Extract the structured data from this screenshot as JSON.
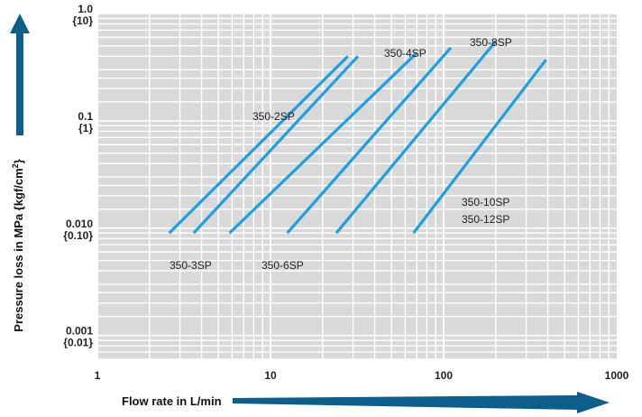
{
  "chart_data": {
    "type": "line",
    "xlabel": "Flow rate in L/min",
    "ylabel_main": "Pressure loss in MPa {kgf/cm",
    "ylabel_sup": "2",
    "ylabel_end": "}",
    "x_scale": "log",
    "y_scale": "log",
    "xlim": [
      1,
      1000
    ],
    "ylim": [
      0.0006,
      1.0
    ],
    "grid": true,
    "x_ticks": [
      {
        "value": 1,
        "label": "1"
      },
      {
        "value": 10,
        "label": "10"
      },
      {
        "value": 100,
        "label": "100"
      },
      {
        "value": 1000,
        "label": "1000"
      }
    ],
    "y_ticks": [
      {
        "value": 1.0,
        "label": "1.0",
        "sublabel": "{10}"
      },
      {
        "value": 0.1,
        "label": "0.1",
        "sublabel": "{1}"
      },
      {
        "value": 0.01,
        "label": "0.010",
        "sublabel": "{0.10}"
      },
      {
        "value": 0.001,
        "label": "0.001",
        "sublabel": "{0.01}"
      }
    ],
    "series": [
      {
        "name": "350-2SP",
        "x": [
          2.6,
          28.0
        ],
        "y": [
          0.009,
          0.4
        ]
      },
      {
        "name": "350-3SP",
        "x": [
          3.6,
          32.0
        ],
        "y": [
          0.009,
          0.4
        ]
      },
      {
        "name": "350-4SP",
        "x": [
          5.8,
          70.0
        ],
        "y": [
          0.009,
          0.43
        ]
      },
      {
        "name": "350-6SP",
        "x": [
          12.5,
          110.0
        ],
        "y": [
          0.009,
          0.48
        ]
      },
      {
        "name": "350-8SP",
        "x": [
          24.0,
          200.0
        ],
        "y": [
          0.009,
          0.55
        ]
      },
      {
        "name": "350-10SP / 350-12SP",
        "x": [
          67.0,
          390.0
        ],
        "y": [
          0.009,
          0.37
        ]
      }
    ],
    "series_labels": [
      {
        "lines": [
          "350-2SP"
        ]
      },
      {
        "lines": [
          "350-3SP"
        ]
      },
      {
        "lines": [
          "350-4SP"
        ]
      },
      {
        "lines": [
          "350-6SP"
        ]
      },
      {
        "lines": [
          "350-8SP"
        ]
      },
      {
        "lines": [
          "350-10SP",
          "350-12SP"
        ]
      }
    ],
    "colors": {
      "line": "#1e9fe0",
      "plot_bg": "#d9d9d9",
      "grid": "#ffffff",
      "arrow": "#0b5f8a"
    }
  }
}
